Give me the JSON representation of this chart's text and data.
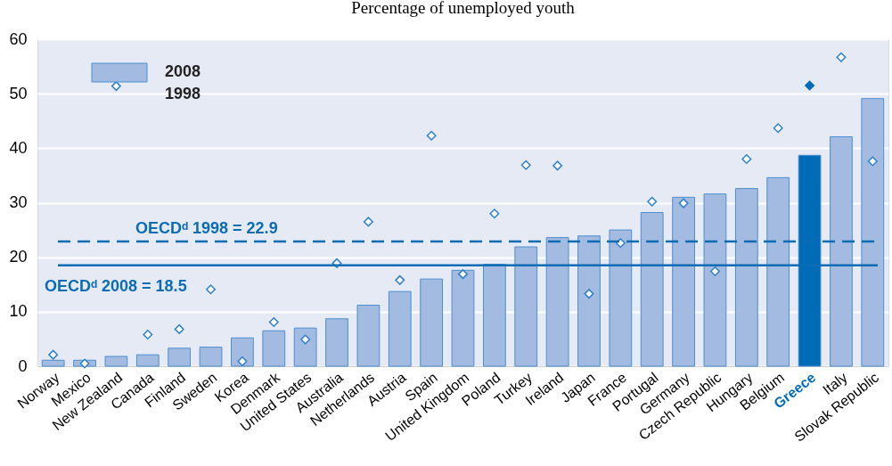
{
  "chart_data": {
    "type": "bar",
    "title": "Percentage of unemployed youth",
    "categories": [
      "Norway",
      "Mexico",
      "New Zealand",
      "Canada",
      "Finland",
      "Sweden",
      "Korea",
      "Denmark",
      "United States",
      "Australia",
      "Netherlands",
      "Austria",
      "Spain",
      "United Kingdom",
      "Poland",
      "Turkey",
      "Ireland",
      "Japan",
      "France",
      "Portugal",
      "Germany",
      "Czech Republic",
      "Hungary",
      "Belgium",
      "Greece",
      "Italy",
      "Slovak Republic"
    ],
    "series": [
      {
        "name": "2008",
        "color": "#a3bbe0",
        "colors": [
          "#a3bbe0",
          "#a3bbe0",
          "#a3bbe0",
          "#a3bbe0",
          "#a3bbe0",
          "#a3bbe0",
          "#a3bbe0",
          "#a3bbe0",
          "#a3bbe0",
          "#a3bbe0",
          "#a3bbe0",
          "#a3bbe0",
          "#a3bbe0",
          "#a3bbe0",
          "#a3bbe0",
          "#a3bbe0",
          "#a3bbe0",
          "#a3bbe0",
          "#a3bbe0",
          "#a3bbe0",
          "#a3bbe0",
          "#a3bbe0",
          "#a3bbe0",
          "#a3bbe0",
          "#006cb7",
          "#a3bbe0",
          "#a3bbe0"
        ],
        "values": [
          1.1,
          1.1,
          1.8,
          2.1,
          3.3,
          3.5,
          5.2,
          6.5,
          7.0,
          8.7,
          11.2,
          13.7,
          16.0,
          17.6,
          18.7,
          21.9,
          23.6,
          23.9,
          25.0,
          28.2,
          31.0,
          31.6,
          32.6,
          34.6,
          38.7,
          42.1,
          49.1
        ]
      },
      {
        "name": "1998",
        "type": "scatter",
        "marker": "diamond",
        "color": "#2f80c8",
        "colors": [
          "#2f80c8",
          "#2f80c8",
          "#2f80c8",
          "#2f80c8",
          "#2f80c8",
          "#2f80c8",
          "#2f80c8",
          "#2f80c8",
          "#2f80c8",
          "#2f80c8",
          "#2f80c8",
          "#2f80c8",
          "#2f80c8",
          "#2f80c8",
          "#2f80c8",
          "#2f80c8",
          "#2f80c8",
          "#2f80c8",
          "#2f80c8",
          "#2f80c8",
          "#2f80c8",
          "#2f80c8",
          "#2f80c8",
          "#2f80c8",
          "#006cb7",
          "#2f80c8",
          "#2f80c8"
        ],
        "values": [
          2.1,
          0.5,
          51.4,
          5.8,
          6.8,
          14.1,
          0.9,
          8.1,
          4.9,
          18.9,
          26.5,
          15.8,
          42.3,
          16.9,
          28.0,
          36.9,
          36.8,
          13.3,
          22.6,
          30.2,
          29.9,
          17.4,
          38.0,
          43.7,
          51.5,
          56.7,
          37.6
        ]
      }
    ],
    "ref_lines": [
      {
        "axis": "y",
        "value": 22.9,
        "label": "OECDᵈ 1998 = 22.9",
        "color": "#0a6cb5",
        "line_style": "dashed"
      },
      {
        "axis": "y",
        "value": 18.5,
        "label": "OECDᵈ 2008 = 18.5",
        "color": "#0a6cb5",
        "line_style": "solid"
      }
    ],
    "ylim": [
      0,
      60
    ],
    "yticks": [
      0,
      10,
      20,
      30,
      40,
      50,
      60
    ],
    "grid": "y",
    "legend": "top left"
  }
}
